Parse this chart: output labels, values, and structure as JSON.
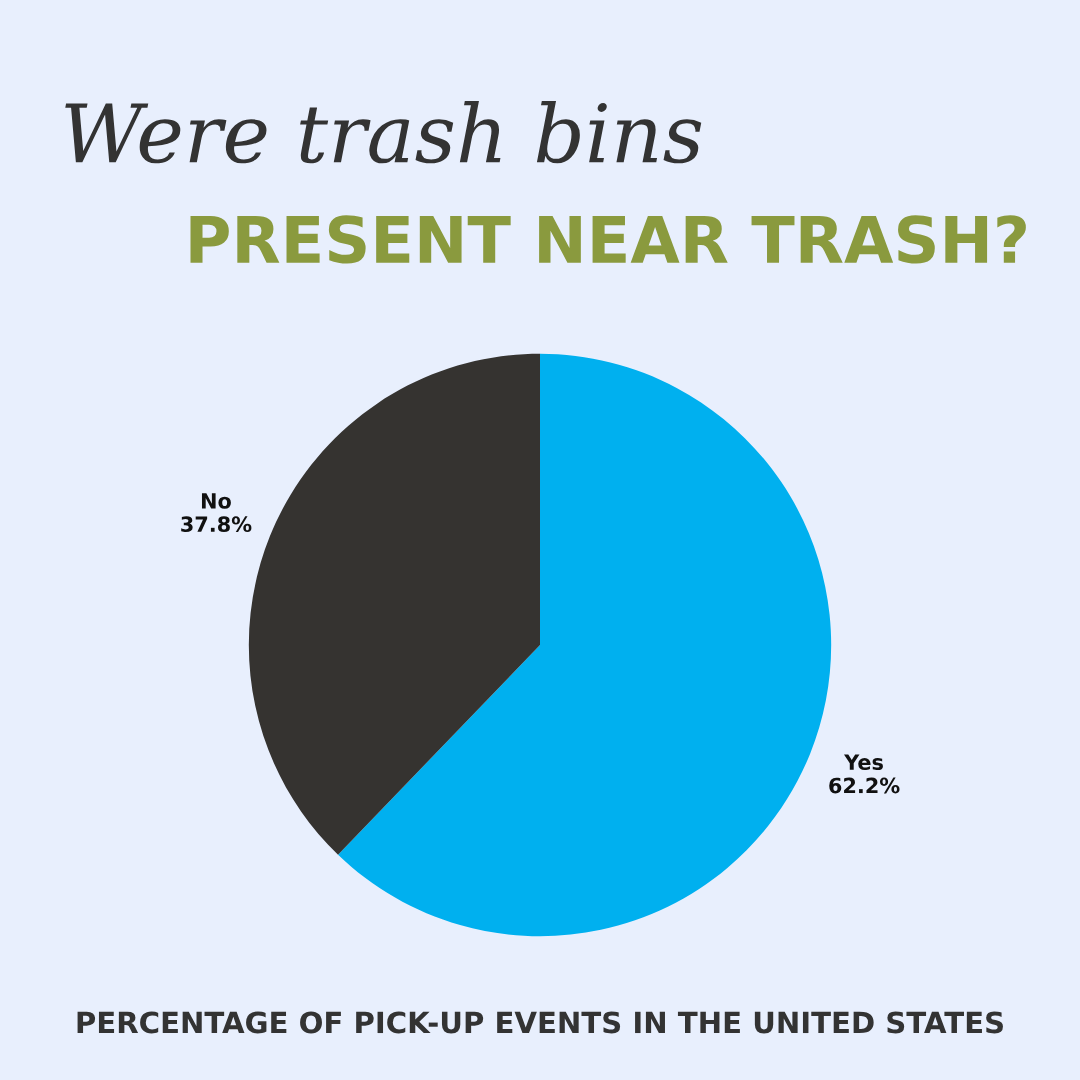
{
  "chart_data": {
    "type": "pie",
    "title": "Were trash bins",
    "subtitle": "PRESENT NEAR TRASH?",
    "categories": [
      "Yes",
      "No"
    ],
    "values": [
      62.2,
      37.8
    ],
    "colors": [
      "#00b0ef",
      "#353330"
    ],
    "value_labels": [
      "62.2%",
      "37.8%"
    ],
    "annotations": [
      "PERCENTAGE OF PICK-UP EVENTS IN THE UNITED STATES"
    ],
    "legend": false
  }
}
